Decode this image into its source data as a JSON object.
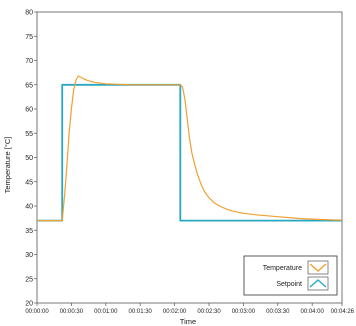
{
  "chart_data": {
    "type": "line",
    "title": "",
    "xlabel": "Time",
    "ylabel": "Temperature [°C]",
    "xlim": [
      0,
      266
    ],
    "ylim": [
      20,
      80
    ],
    "y_ticks": [
      20,
      25,
      30,
      35,
      40,
      45,
      50,
      55,
      60,
      65,
      70,
      75,
      80
    ],
    "x_ticks": [
      0,
      30,
      60,
      90,
      120,
      150,
      180,
      210,
      240,
      266
    ],
    "x_tick_labels": [
      "00:00:00",
      "00:00:30",
      "00:01:00",
      "00:01:30",
      "00:02:00",
      "00:02:30",
      "00:03:00",
      "00:03:30",
      "00:04:00",
      "00:04:26"
    ],
    "grid": false,
    "legend_position": "bottom-right",
    "series": [
      {
        "name": "Temperature",
        "color": "#f0a030",
        "x": [
          0,
          22,
          24,
          26,
          28,
          30,
          32,
          34,
          36,
          38,
          40,
          44,
          50,
          60,
          70,
          80,
          90,
          100,
          110,
          120,
          125,
          127,
          129,
          131,
          133,
          135,
          137,
          140,
          143,
          146,
          150,
          155,
          160,
          165,
          170,
          180,
          190,
          200,
          210,
          220,
          230,
          240,
          250,
          266
        ],
        "y": [
          37,
          37,
          42,
          48,
          55,
          60,
          64,
          66,
          66.8,
          66.6,
          66.3,
          65.9,
          65.5,
          65.2,
          65.1,
          65,
          65,
          65,
          65,
          65,
          65,
          64.5,
          62,
          58,
          54,
          51,
          49,
          46.5,
          44.5,
          43,
          41.7,
          40.6,
          39.9,
          39.4,
          39,
          38.5,
          38.2,
          38,
          37.8,
          37.6,
          37.4,
          37.3,
          37.2,
          37.1
        ]
      },
      {
        "name": "Setpoint",
        "color": "#28a8c0",
        "x": [
          0,
          22,
          22,
          125,
          125,
          266
        ],
        "y": [
          37,
          37,
          65,
          65,
          37,
          37
        ]
      }
    ]
  }
}
